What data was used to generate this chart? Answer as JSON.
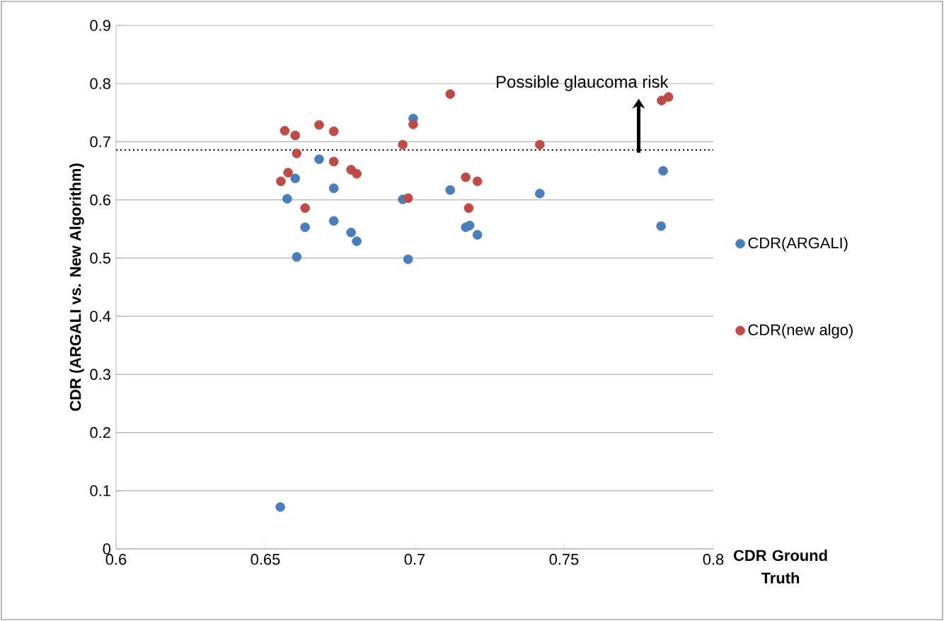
{
  "chart_data": {
    "type": "scatter",
    "xlabel": "CDR Ground Truth",
    "ylabel": "CDR  (ARGALI vs. New Algorithm)",
    "xlim": [
      0.6,
      0.8
    ],
    "xticks": [
      0.6,
      0.65,
      0.7,
      0.75,
      0.8
    ],
    "ylim": [
      0,
      0.9
    ],
    "yticks": [
      0,
      0.1,
      0.2,
      0.3,
      0.4,
      0.5,
      0.6,
      0.7,
      0.8,
      0.9
    ],
    "grid": "y",
    "legend": "right",
    "marker": "circle",
    "ref_lines": [
      {
        "axis": "y",
        "value": 0.686,
        "line_style": "dotted",
        "color": "#000000"
      }
    ],
    "annotations": [
      "Possible glaucoma risk"
    ],
    "series": [
      {
        "name": "CDR(ARGALI)",
        "color": "#4a7ebb",
        "x": [
          0.66,
          0.6573,
          0.6633,
          0.6605,
          0.668,
          0.6729,
          0.6729,
          0.6787,
          0.6806,
          0.6995,
          0.696,
          0.6978,
          0.7119,
          0.7171,
          0.7184,
          0.721,
          0.7419,
          0.7832,
          0.7825,
          0.655
        ],
        "values": [
          0.637,
          0.602,
          0.553,
          0.502,
          0.67,
          0.62,
          0.564,
          0.544,
          0.529,
          0.74,
          0.601,
          0.498,
          0.617,
          0.553,
          0.556,
          0.54,
          0.611,
          0.65,
          0.555,
          0.072
        ]
      },
      {
        "name": "CDR(new algo)",
        "color": "#be4b48",
        "x": [
          0.6565,
          0.66,
          0.6605,
          0.668,
          0.6729,
          0.6729,
          0.6787,
          0.6806,
          0.6576,
          0.6552,
          0.6633,
          0.696,
          0.6995,
          0.6978,
          0.7119,
          0.7171,
          0.721,
          0.7181,
          0.7419,
          0.7827,
          0.785
        ],
        "values": [
          0.719,
          0.711,
          0.68,
          0.729,
          0.718,
          0.666,
          0.652,
          0.645,
          0.647,
          0.632,
          0.586,
          0.695,
          0.73,
          0.603,
          0.782,
          0.639,
          0.632,
          0.586,
          0.695,
          0.771,
          0.777
        ]
      }
    ]
  }
}
